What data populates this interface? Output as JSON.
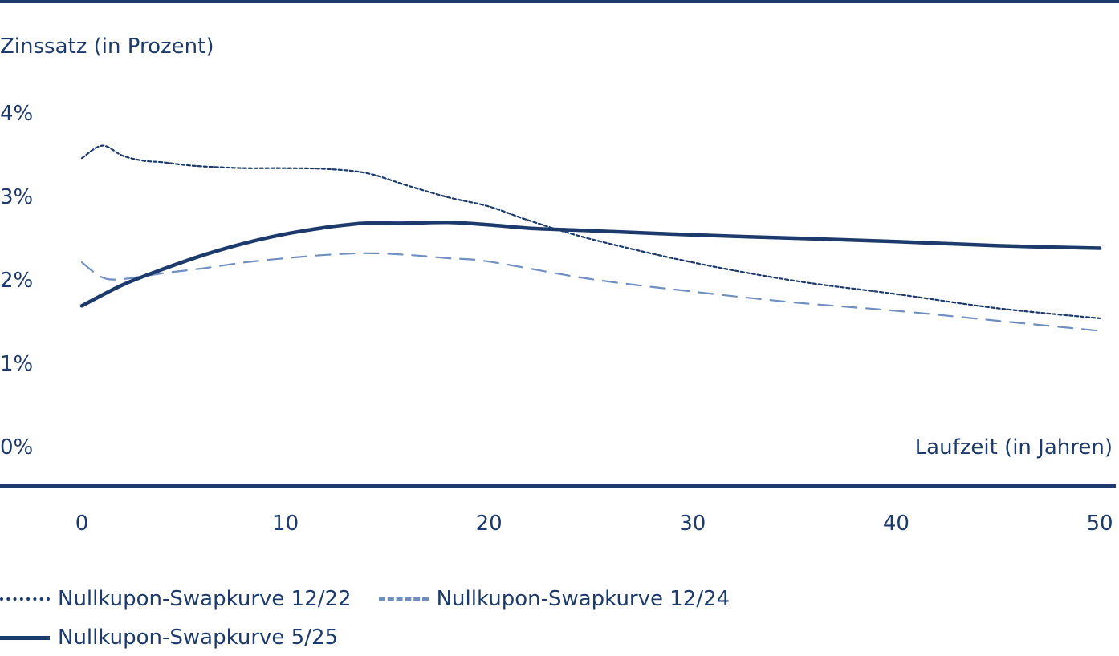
{
  "chart_data": {
    "type": "line",
    "ylabel": "Zinssatz (in Prozent)",
    "xlabel": "Laufzeit (in Jahren)",
    "y_ticks": [
      "0%",
      "1%",
      "2%",
      "3%",
      "4%"
    ],
    "y_tick_values": [
      0,
      1,
      2,
      3,
      4
    ],
    "x_ticks": [
      "0",
      "10",
      "20",
      "30",
      "40",
      "50"
    ],
    "x_tick_values": [
      0,
      10,
      20,
      30,
      40,
      50
    ],
    "xlim": [
      0,
      50
    ],
    "ylim": [
      0,
      4
    ],
    "grid": false,
    "legend_position": "bottom-left",
    "series": [
      {
        "name": "Nullkupon-Swapkurve 12/22",
        "style": "dotted",
        "color": "#1c3a6b",
        "x": [
          0,
          1,
          2,
          3,
          4,
          5,
          6,
          8,
          10,
          12,
          14,
          16,
          18,
          20,
          22,
          25,
          30,
          35,
          40,
          45,
          50
        ],
        "y": [
          3.45,
          3.6,
          3.48,
          3.42,
          3.4,
          3.37,
          3.35,
          3.33,
          3.33,
          3.32,
          3.27,
          3.12,
          2.98,
          2.87,
          2.7,
          2.48,
          2.2,
          1.98,
          1.82,
          1.65,
          1.53
        ]
      },
      {
        "name": "Nullkupon-Swapkurve 12/24",
        "style": "dashed",
        "color": "#6f8fc0",
        "x": [
          0,
          1,
          2,
          4,
          6,
          8,
          10,
          12,
          14,
          16,
          18,
          20,
          25,
          30,
          35,
          40,
          45,
          50
        ],
        "y": [
          2.2,
          2.02,
          2.0,
          2.07,
          2.13,
          2.2,
          2.25,
          2.29,
          2.31,
          2.29,
          2.25,
          2.21,
          2.0,
          1.85,
          1.72,
          1.62,
          1.5,
          1.38
        ]
      },
      {
        "name": "Nullkupon-Swapkurve 5/25",
        "style": "solid",
        "color": "#1c3a6b",
        "x": [
          0,
          2,
          4,
          6,
          8,
          10,
          12,
          13,
          14,
          16,
          18,
          20,
          22,
          25,
          30,
          35,
          40,
          45,
          50
        ],
        "y": [
          1.68,
          1.93,
          2.12,
          2.29,
          2.43,
          2.54,
          2.62,
          2.65,
          2.67,
          2.67,
          2.68,
          2.65,
          2.61,
          2.58,
          2.53,
          2.49,
          2.45,
          2.4,
          2.37
        ]
      }
    ]
  },
  "legend": {
    "items": [
      {
        "label": "Nullkupon-Swapkurve 12/22",
        "style": "dotted"
      },
      {
        "label": "Nullkupon-Swapkurve 12/24",
        "style": "dashed"
      },
      {
        "label": "Nullkupon-Swapkurve 5/25",
        "style": "solid"
      }
    ]
  }
}
